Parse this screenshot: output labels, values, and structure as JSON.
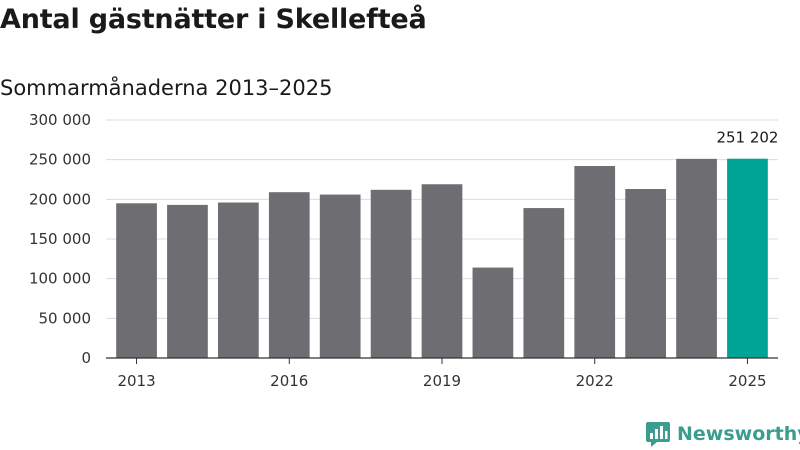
{
  "title": "Antal gästnätter i Skellefteå",
  "subtitle": "Sommarmånaderna 2013–2025",
  "brand": {
    "name": "Newsworthy",
    "color": "#3a9d8f",
    "icon": "newsworthy-logo-icon"
  },
  "colors": {
    "bar": "#6e6d72",
    "highlight": "#00a497",
    "grid": "#dcdcdc",
    "axis": "#333333"
  },
  "chart_data": {
    "type": "bar",
    "categories": [
      "2013",
      "2014",
      "2015",
      "2016",
      "2017",
      "2018",
      "2019",
      "2020",
      "2021",
      "2022",
      "2023",
      "2024",
      "2025"
    ],
    "values": [
      195000,
      193000,
      196000,
      209000,
      206000,
      212000,
      219000,
      114000,
      189000,
      242000,
      213000,
      251000,
      251202
    ],
    "highlight_index": 12,
    "x_tick_labels": [
      "2013",
      "2016",
      "2019",
      "2022",
      "2025"
    ],
    "y_ticks": [
      0,
      50000,
      100000,
      150000,
      200000,
      250000,
      300000
    ],
    "y_tick_labels": [
      "0",
      "50 000",
      "100 000",
      "150 000",
      "200 000",
      "250 000",
      "300 000"
    ],
    "ylim": [
      0,
      300000
    ],
    "annotation": {
      "index": 12,
      "text": "251 202"
    },
    "grid": true,
    "legend": "none",
    "title": "Antal gästnätter i Skellefteå",
    "subtitle": "Sommarmånaderna 2013–2025",
    "xlabel": "",
    "ylabel": ""
  }
}
